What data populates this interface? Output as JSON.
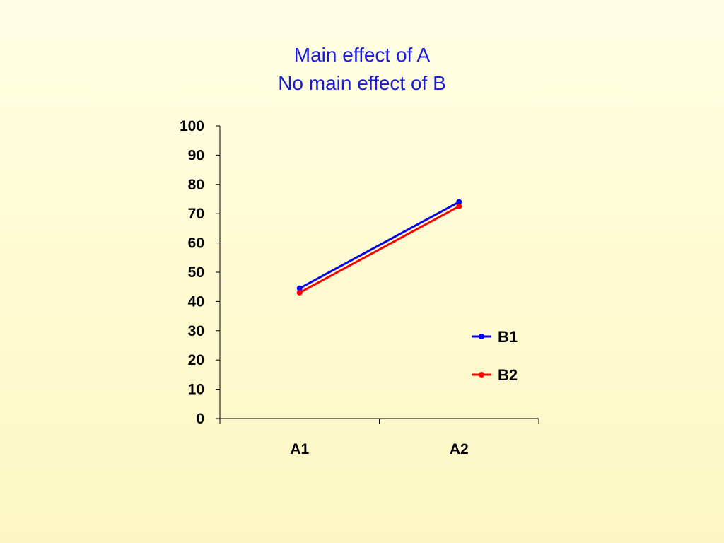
{
  "chart_data": {
    "type": "line",
    "title": [
      "Main effect of A",
      "No main effect of B"
    ],
    "categories": [
      "A1",
      "A2"
    ],
    "series": [
      {
        "name": "B1",
        "values": [
          44.5,
          74
        ],
        "color": "#0000ff"
      },
      {
        "name": "B2",
        "values": [
          43,
          72.5
        ],
        "color": "#ff0000"
      }
    ],
    "ylim": [
      0,
      100
    ],
    "yticks": [
      0,
      10,
      20,
      30,
      40,
      50,
      60,
      70,
      80,
      90,
      100
    ],
    "grid": false,
    "legend_position": "right",
    "title_color": "#1a1adb"
  }
}
